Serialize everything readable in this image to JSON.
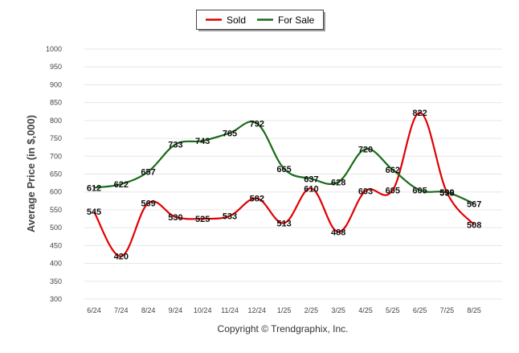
{
  "chart_data": {
    "type": "line",
    "categories": [
      "6/24",
      "7/24",
      "8/24",
      "9/24",
      "10/24",
      "11/24",
      "12/24",
      "1/25",
      "2/25",
      "3/25",
      "4/25",
      "5/25",
      "6/25",
      "7/25",
      "8/25"
    ],
    "series": [
      {
        "name": "Sold",
        "color": "#e00000",
        "values": [
          545,
          420,
          569,
          530,
          525,
          533,
          582,
          513,
          610,
          488,
          603,
          605,
          822,
          598,
          508
        ]
      },
      {
        "name": "For Sale",
        "color": "#1a6b1a",
        "values": [
          612,
          622,
          657,
          733,
          743,
          765,
          792,
          665,
          637,
          628,
          720,
          662,
          605,
          599,
          567
        ]
      }
    ],
    "title": "",
    "xlabel": "",
    "ylabel": "Average Price (in $,000)",
    "ylim": [
      300,
      1000
    ],
    "yticks": [
      300,
      350,
      400,
      450,
      500,
      550,
      600,
      650,
      700,
      750,
      800,
      850,
      900,
      950,
      1000
    ],
    "grid": true,
    "legend_position": "top-center",
    "footer": "Copyright © Trendgraphix, Inc."
  }
}
